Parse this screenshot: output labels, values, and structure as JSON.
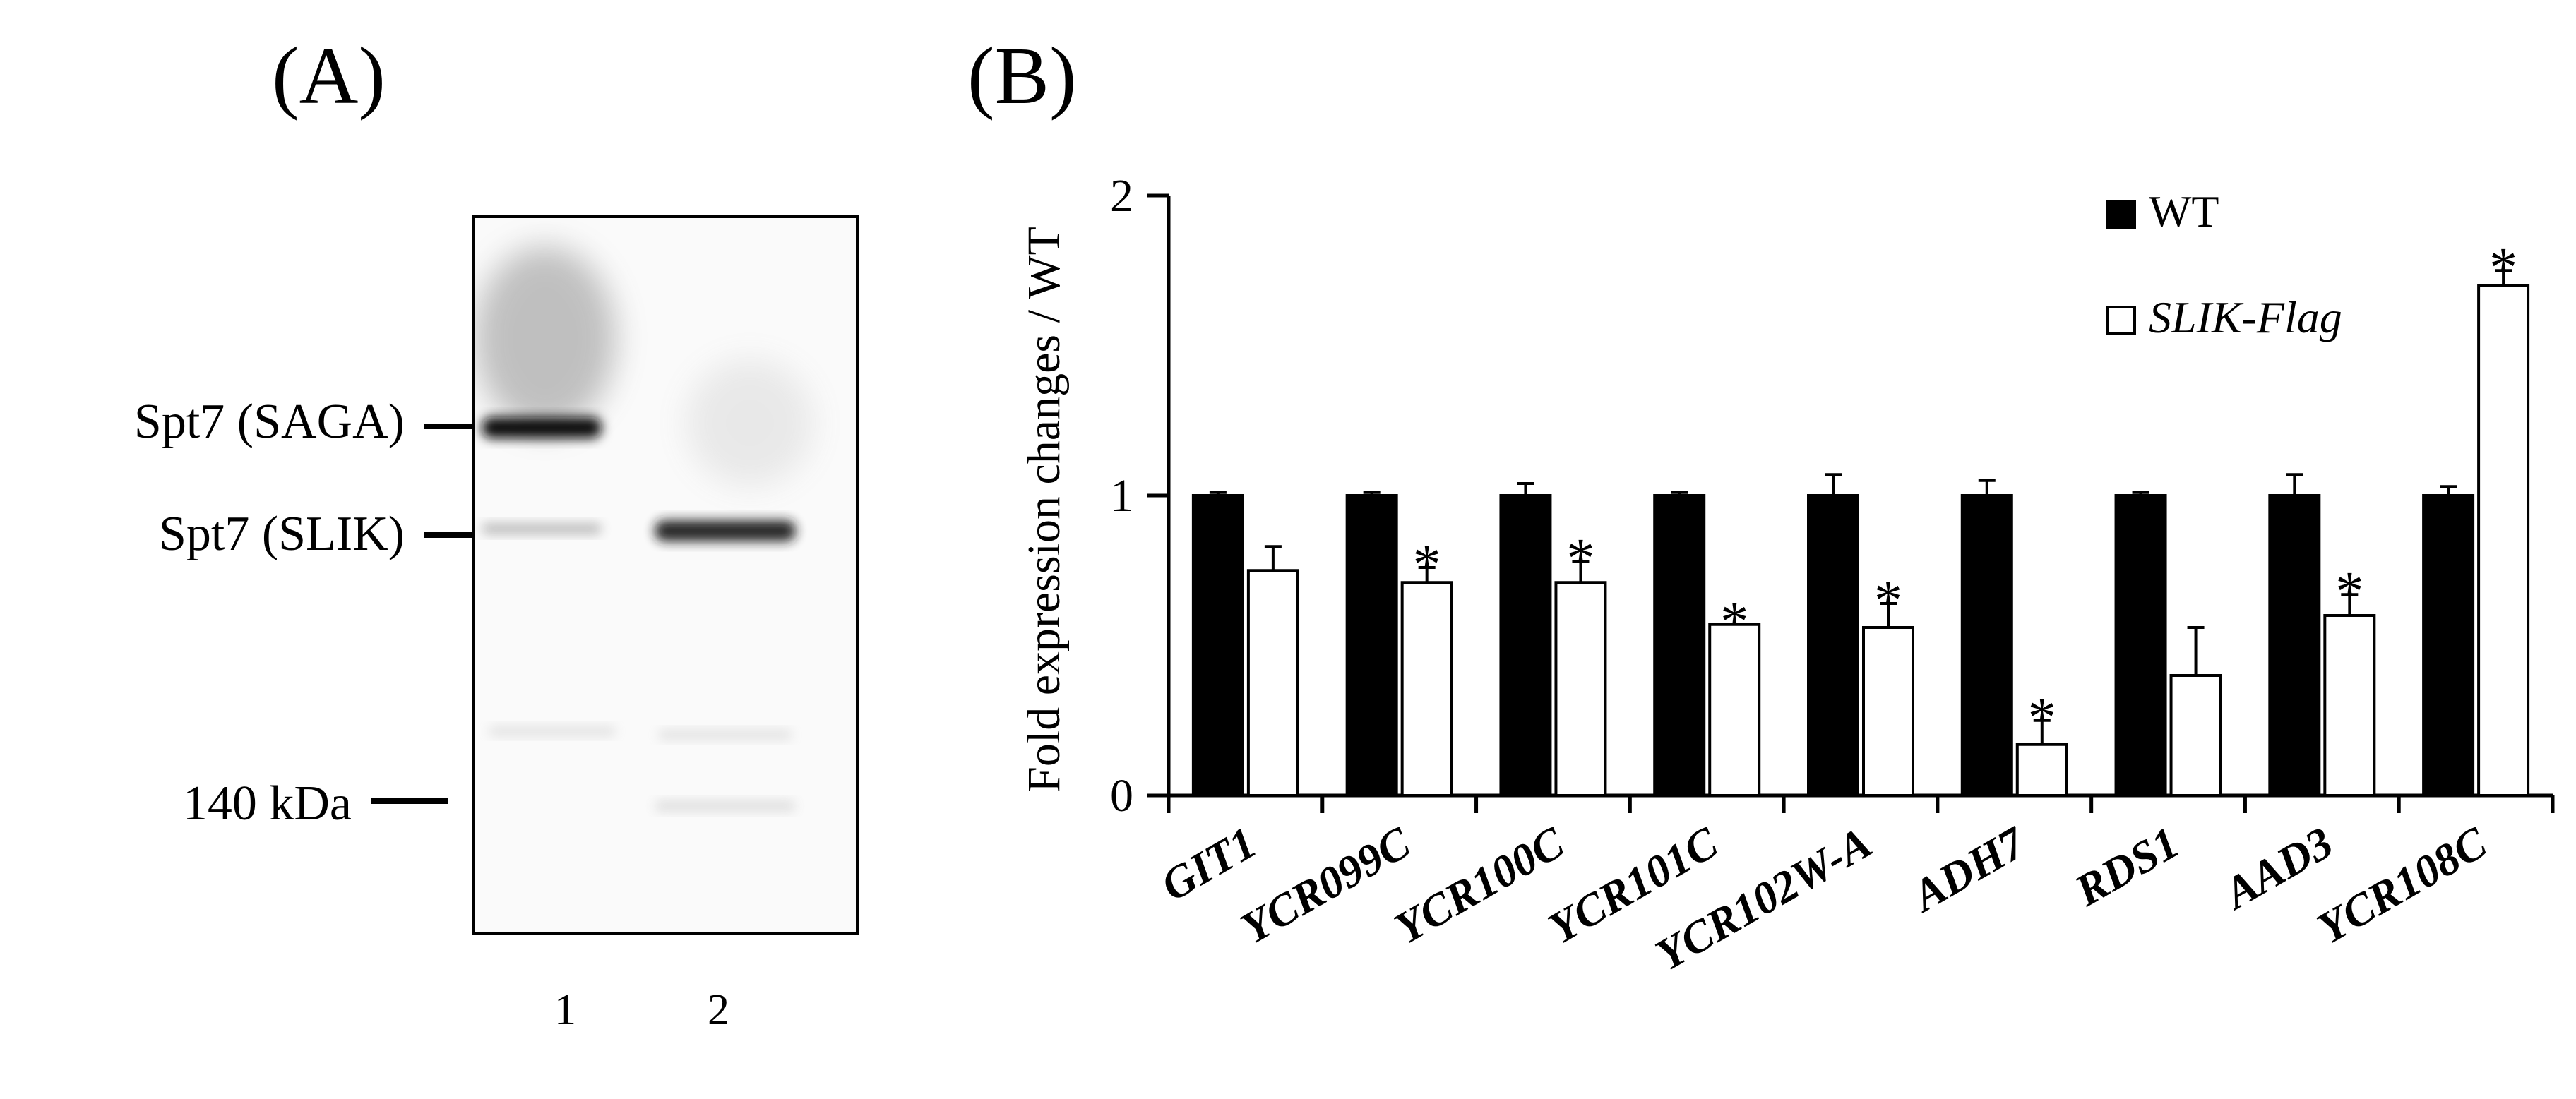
{
  "panel_a": {
    "label": "(A)",
    "bands": {
      "saga": "Spt7 (SAGA)",
      "slik": "Spt7 (SLIK)",
      "marker": "140 kDa"
    },
    "lanes": [
      "1",
      "2"
    ],
    "band_intensity": {
      "saga_lane1": 1.0,
      "saga_lane2": 0.0,
      "slik_lane1": 0.3,
      "slik_lane2": 0.95,
      "low_lane2": 0.18
    }
  },
  "panel_b": {
    "label": "(B)"
  },
  "colors": {
    "wt": "#000000",
    "slik": "#ffffff",
    "axis": "#000000"
  },
  "chart_data": {
    "type": "bar",
    "title": "",
    "xlabel": "",
    "ylabel": "Fold expression changes / WT",
    "ylim": [
      0,
      2
    ],
    "yticks": [
      "0",
      "1",
      "2"
    ],
    "categories": [
      "GIT1",
      "YCR099C",
      "YCR100C",
      "YCR101C",
      "YCR102W-A",
      "ADH7",
      "RDS1",
      "AAD3",
      "YCR108C"
    ],
    "legend_position": "top-right",
    "series": [
      {
        "name": "WT",
        "values": [
          1.0,
          1.0,
          1.0,
          1.0,
          1.0,
          1.0,
          1.0,
          1.0,
          1.0
        ],
        "errors": [
          0.01,
          0.01,
          0.04,
          0.01,
          0.07,
          0.05,
          0.01,
          0.07,
          0.03
        ],
        "significant": [
          false,
          false,
          false,
          false,
          false,
          false,
          false,
          false,
          false
        ]
      },
      {
        "name": "SLIK-Flag",
        "values": [
          0.75,
          0.71,
          0.71,
          0.57,
          0.56,
          0.17,
          0.4,
          0.6,
          1.7
        ],
        "errors": [
          0.08,
          0.05,
          0.07,
          0.0,
          0.08,
          0.08,
          0.16,
          0.07,
          0.05
        ],
        "significant": [
          false,
          true,
          true,
          true,
          true,
          true,
          false,
          true,
          true
        ]
      }
    ],
    "significance_marker": "*"
  }
}
